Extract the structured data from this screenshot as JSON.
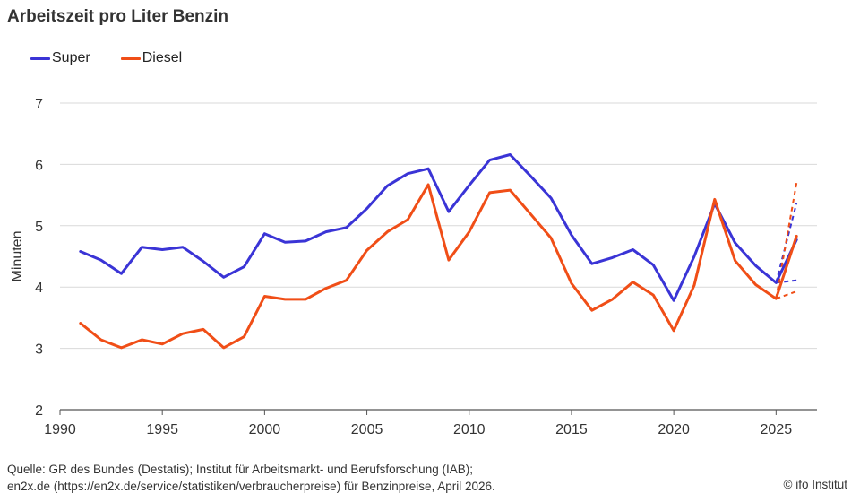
{
  "title": "Arbeitszeit pro Liter Benzin",
  "colors": {
    "super": "#3a34d6",
    "diesel": "#f04e17",
    "grid": "#d9d9d9",
    "text": "#333333"
  },
  "footer": {
    "line1": "Quelle: GR des Bundes (Destatis); Institut für Arbeitsmarkt- und Berufsforschung (IAB);",
    "line2": "en2x.de (https://en2x.de/service/statistiken/verbraucherpreise) für Benzinpreise, April 2026.",
    "credit": "© ifo Institut"
  },
  "chart_data": {
    "type": "line",
    "title": "Arbeitszeit pro Liter Benzin",
    "xlabel": "",
    "ylabel": "Minuten",
    "xlim": [
      1990,
      2027
    ],
    "ylim": [
      2,
      7
    ],
    "x_ticks": [
      1990,
      1995,
      2000,
      2005,
      2010,
      2015,
      2020,
      2025
    ],
    "y_ticks": [
      2,
      3,
      4,
      5,
      6,
      7
    ],
    "grid": true,
    "legend_position": "top-left",
    "series": [
      {
        "name": "Super",
        "color": "#3a34d6",
        "x": [
          1991,
          1992,
          1993,
          1994,
          1995,
          1996,
          1997,
          1998,
          1999,
          2000,
          2001,
          2002,
          2003,
          2004,
          2005,
          2006,
          2007,
          2008,
          2009,
          2010,
          2011,
          2012,
          2013,
          2014,
          2015,
          2016,
          2017,
          2018,
          2019,
          2020,
          2021,
          2022,
          2023,
          2024,
          2025,
          2026
        ],
        "values": [
          4.58,
          4.44,
          4.22,
          4.65,
          4.61,
          4.65,
          4.42,
          4.16,
          4.33,
          4.87,
          4.73,
          4.75,
          4.9,
          4.97,
          5.28,
          5.65,
          5.85,
          5.93,
          5.23,
          5.66,
          6.07,
          6.16,
          5.81,
          5.45,
          4.85,
          4.38,
          4.48,
          4.61,
          4.36,
          3.78,
          4.5,
          5.36,
          4.72,
          4.35,
          4.07,
          4.77
        ]
      },
      {
        "name": "Diesel",
        "color": "#f04e17",
        "x": [
          1991,
          1992,
          1993,
          1994,
          1995,
          1996,
          1997,
          1998,
          1999,
          2000,
          2001,
          2002,
          2003,
          2004,
          2005,
          2006,
          2007,
          2008,
          2009,
          2010,
          2011,
          2012,
          2013,
          2014,
          2015,
          2016,
          2017,
          2018,
          2019,
          2020,
          2021,
          2022,
          2023,
          2024,
          2025,
          2026
        ],
        "values": [
          3.41,
          3.14,
          3.01,
          3.14,
          3.07,
          3.24,
          3.31,
          3.01,
          3.19,
          3.85,
          3.8,
          3.8,
          3.98,
          4.11,
          4.6,
          4.9,
          5.1,
          5.67,
          4.44,
          4.9,
          5.54,
          5.58,
          5.19,
          4.8,
          4.06,
          3.62,
          3.8,
          4.08,
          3.87,
          3.29,
          4.03,
          5.43,
          4.43,
          4.04,
          3.81,
          4.83
        ]
      }
    ],
    "projections": [
      {
        "series": "Super",
        "x": [
          2025,
          2026
        ],
        "low": [
          4.07,
          4.11
        ],
        "high": [
          4.07,
          5.37
        ]
      },
      {
        "series": "Diesel",
        "x": [
          2025,
          2026
        ],
        "low": [
          3.81,
          3.93
        ],
        "high": [
          3.81,
          5.7
        ]
      }
    ]
  }
}
